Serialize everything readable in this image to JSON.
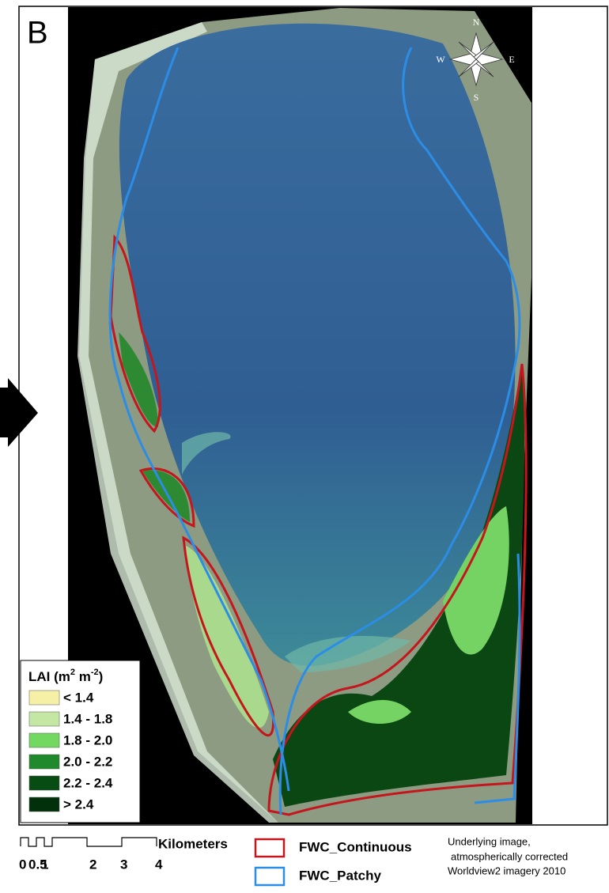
{
  "panel_label": "B",
  "compass": {
    "north": "N",
    "east": "E",
    "south": "S",
    "west": "W"
  },
  "legend": {
    "title_parts": [
      "LAI (m",
      "2",
      " m",
      "-2",
      ")"
    ],
    "items": [
      {
        "label": "< 1.4",
        "color": "#f6efa6"
      },
      {
        "label": "1.4 - 1.8",
        "color": "#c4e8a4"
      },
      {
        "label": "1.8 - 2.0",
        "color": "#72d860"
      },
      {
        "label": "2.0 - 2.2",
        "color": "#1f8a2b"
      },
      {
        "label": "2.2 - 2.4",
        "color": "#074d13"
      },
      {
        "label": "> 2.4",
        "color": "#02300b"
      }
    ]
  },
  "scale_bar": {
    "labels": [
      "0",
      "0.5",
      "1",
      "2",
      "3",
      "4"
    ],
    "unit": "Kilometers"
  },
  "boundaries": [
    {
      "label": "FWC_Continuous",
      "color": "#c4161c"
    },
    {
      "label": "FWC_Patchy",
      "color": "#2b8de6"
    }
  ],
  "caption": [
    "Underlying image,",
    "atmospherically corrected",
    "Worldview2 imagery 2010"
  ]
}
